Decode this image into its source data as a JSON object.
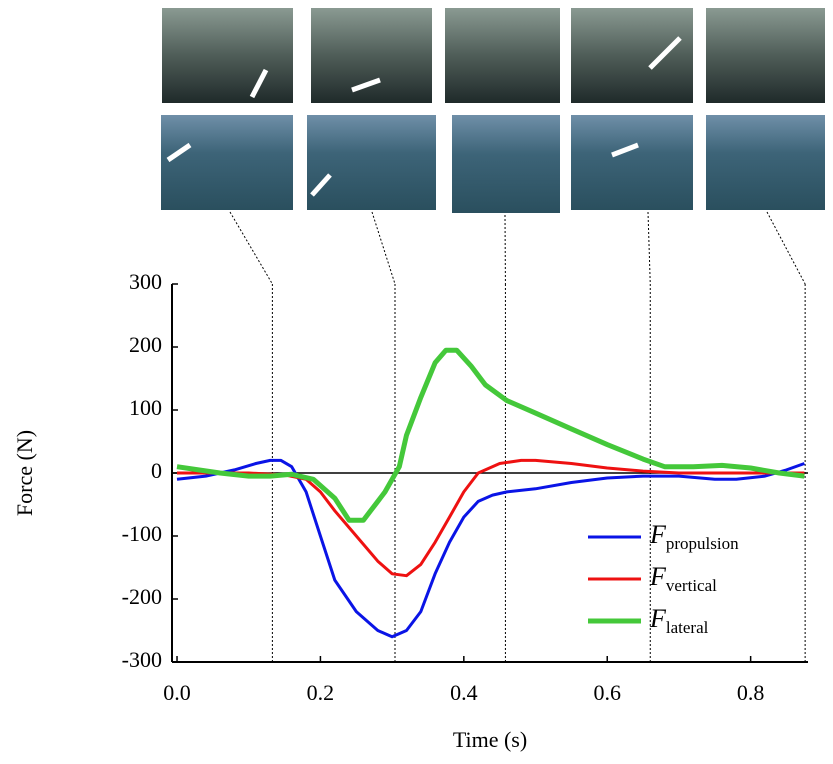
{
  "chart_data": {
    "type": "line",
    "x_label": "Time (s)",
    "y_label": "Force (N)",
    "xlim": [
      -0.007,
      0.88
    ],
    "ylim": [
      -300,
      300
    ],
    "xticks": [
      {
        "value": 0,
        "label": "0.0"
      },
      0.2,
      0.4,
      0.6,
      0.8
    ],
    "yticks": [
      -300,
      -200,
      -100,
      0,
      100,
      200,
      300
    ],
    "markers": [
      0.133,
      0.304,
      0.458,
      0.66,
      0.876
    ],
    "legend": "lower right",
    "series": [
      {
        "name": "F",
        "subscript": "propulsion",
        "color": "#0a14e6",
        "x": [
          0,
          0.04,
          0.08,
          0.11,
          0.13,
          0.145,
          0.16,
          0.18,
          0.2,
          0.22,
          0.25,
          0.28,
          0.3,
          0.32,
          0.34,
          0.36,
          0.38,
          0.4,
          0.42,
          0.44,
          0.46,
          0.5,
          0.55,
          0.6,
          0.65,
          0.7,
          0.75,
          0.78,
          0.82,
          0.85,
          0.875
        ],
        "values": [
          -10,
          -5,
          5,
          15,
          20,
          20,
          10,
          -30,
          -100,
          -170,
          -220,
          -250,
          -260,
          -250,
          -220,
          -160,
          -110,
          -70,
          -45,
          -35,
          -30,
          -25,
          -15,
          -8,
          -5,
          -5,
          -10,
          -10,
          -5,
          5,
          15
        ]
      },
      {
        "name": "F",
        "subscript": "vertical",
        "color": "#ee1111",
        "x": [
          0,
          0.1,
          0.15,
          0.18,
          0.2,
          0.22,
          0.25,
          0.28,
          0.3,
          0.32,
          0.34,
          0.36,
          0.38,
          0.4,
          0.42,
          0.45,
          0.48,
          0.5,
          0.55,
          0.6,
          0.65,
          0.7,
          0.8,
          0.875
        ],
        "values": [
          0,
          0,
          -3,
          -10,
          -30,
          -60,
          -100,
          -140,
          -160,
          -163,
          -145,
          -110,
          -70,
          -30,
          0,
          15,
          20,
          20,
          15,
          8,
          3,
          0,
          0,
          0
        ]
      },
      {
        "name": "F",
        "subscript": "lateral",
        "color": "#44c83a",
        "x": [
          0,
          0.03,
          0.06,
          0.1,
          0.13,
          0.16,
          0.19,
          0.22,
          0.24,
          0.26,
          0.27,
          0.29,
          0.31,
          0.32,
          0.34,
          0.36,
          0.375,
          0.39,
          0.41,
          0.43,
          0.46,
          0.5,
          0.55,
          0.6,
          0.65,
          0.68,
          0.72,
          0.76,
          0.8,
          0.84,
          0.875
        ],
        "values": [
          10,
          5,
          0,
          -5,
          -5,
          -2,
          -10,
          -40,
          -75,
          -75,
          -60,
          -30,
          10,
          60,
          120,
          175,
          195,
          195,
          170,
          140,
          115,
          95,
          70,
          45,
          22,
          10,
          10,
          12,
          8,
          0,
          -5
        ]
      }
    ]
  }
}
